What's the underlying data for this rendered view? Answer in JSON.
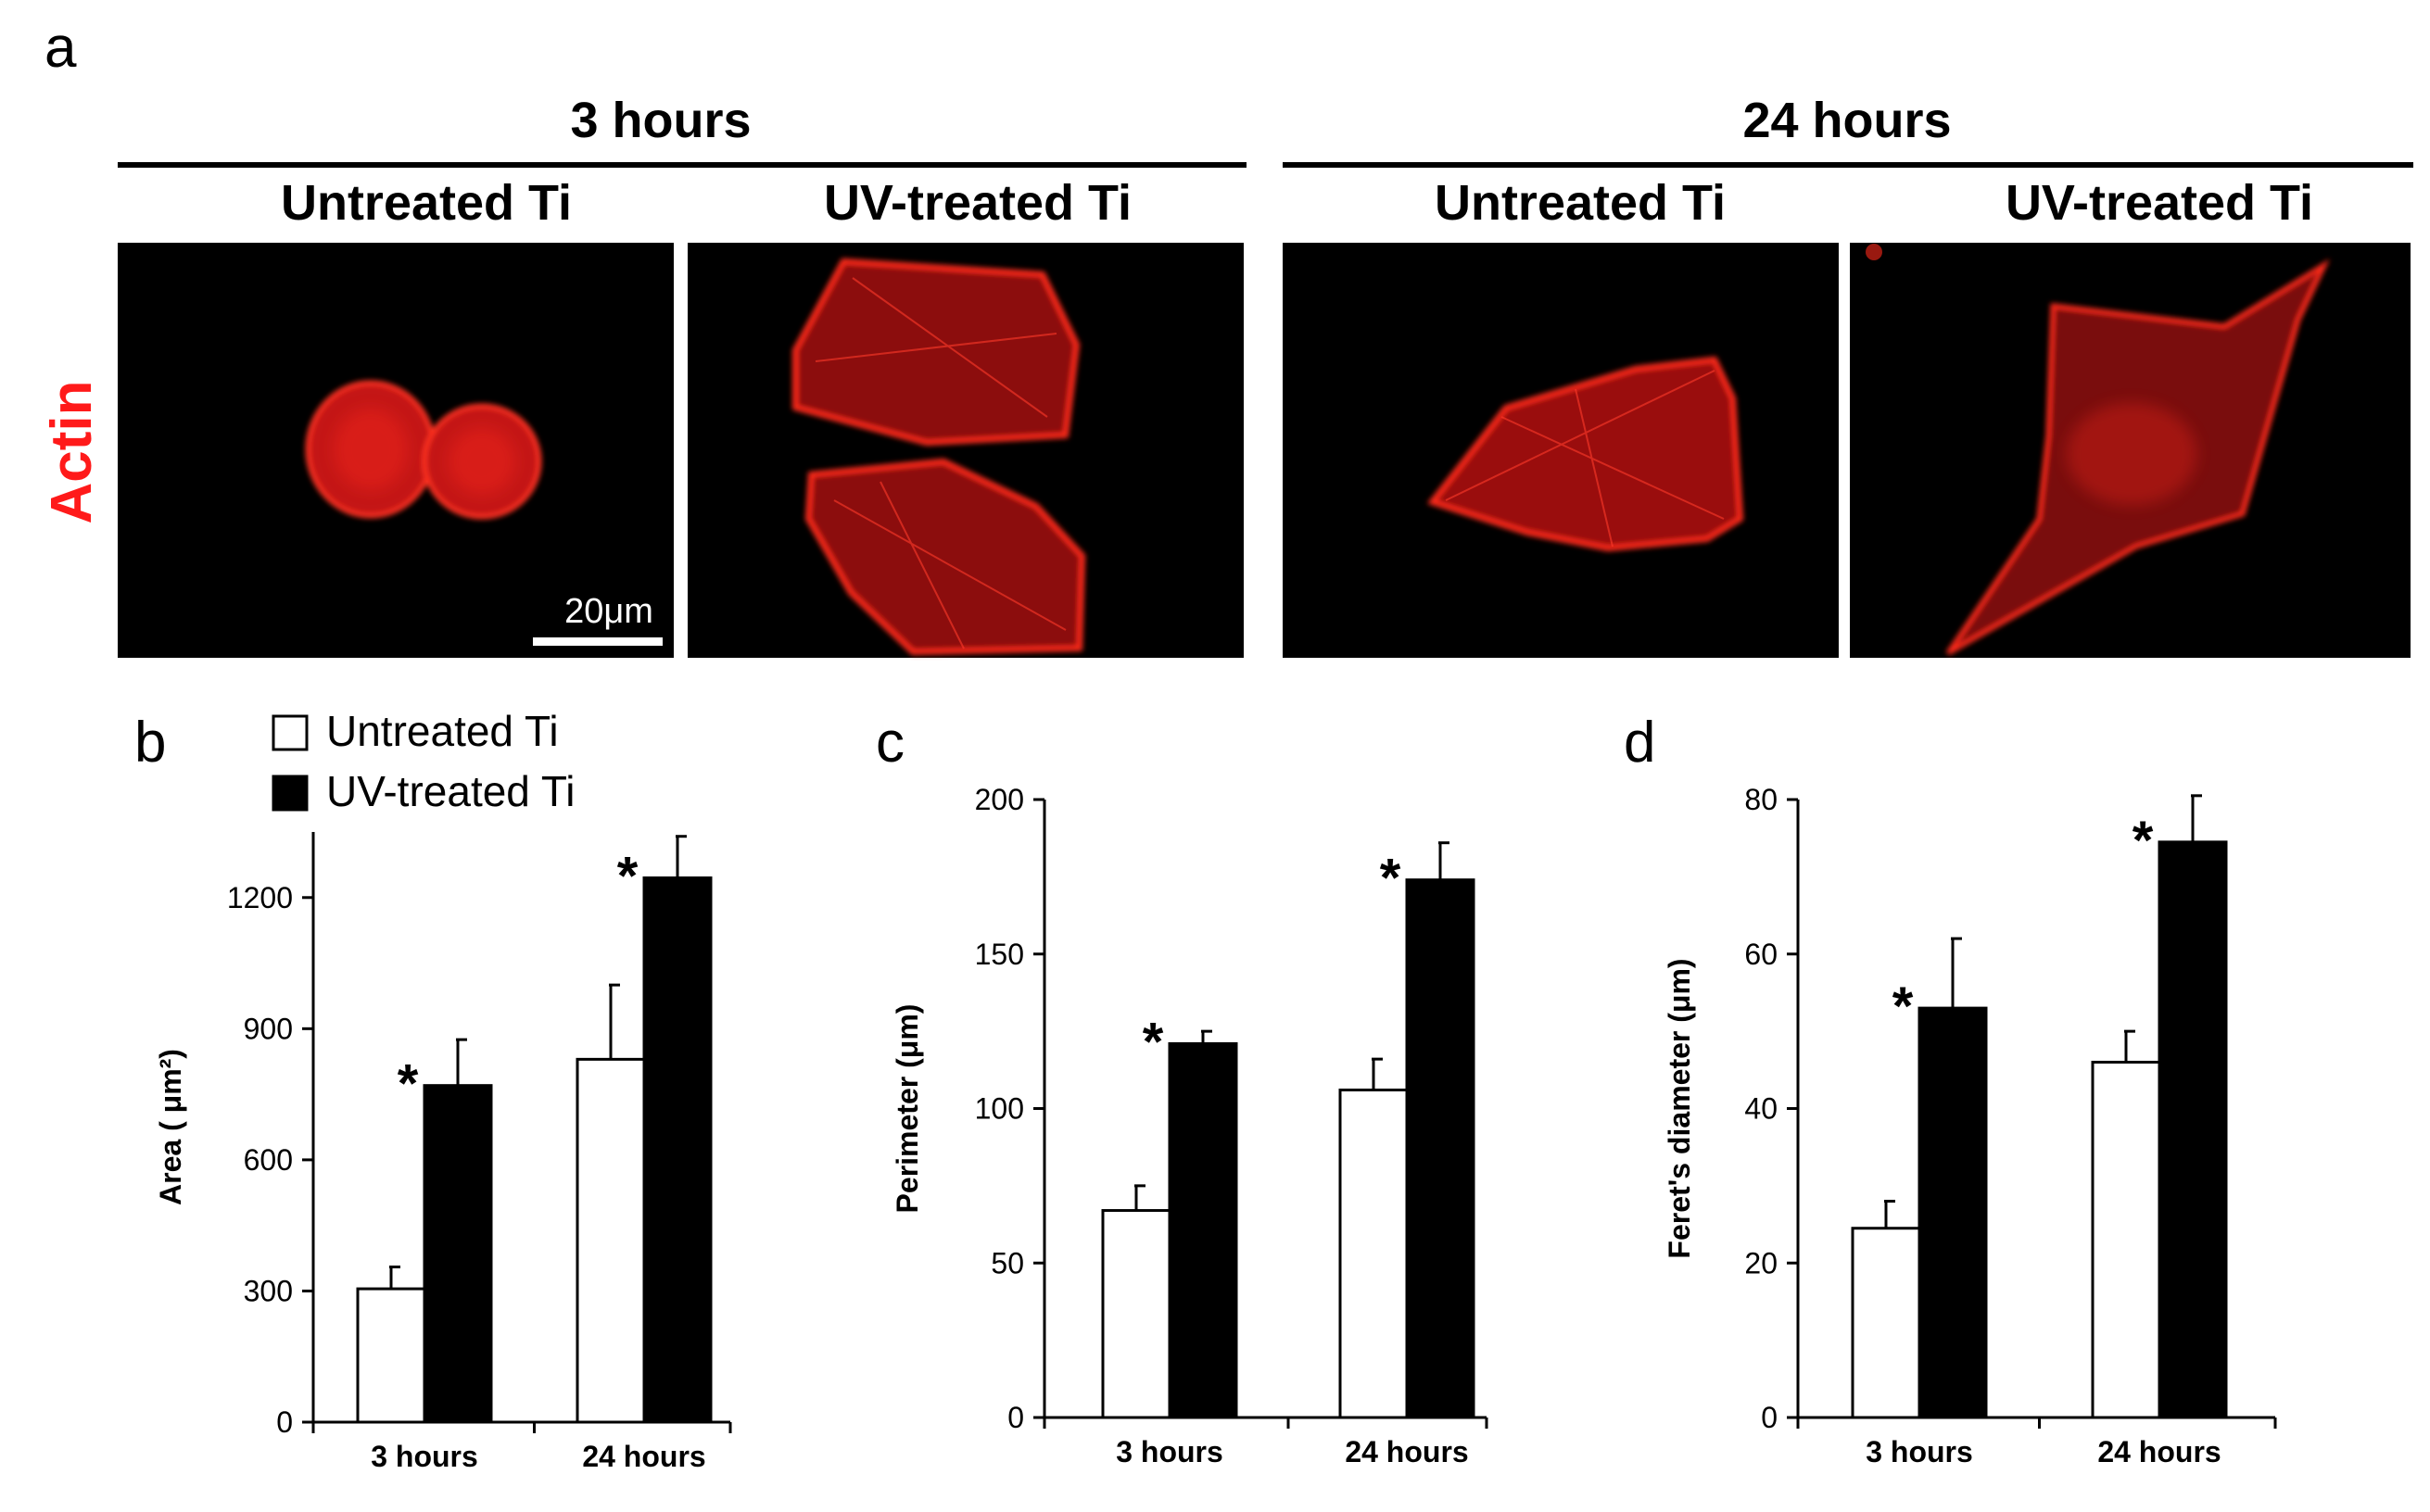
{
  "figure": {
    "panel_a_letter": "a",
    "groups": [
      "3 hours",
      "24 hours"
    ],
    "columns": [
      "Untreated Ti",
      "UV-treated Ti",
      "Untreated Ti",
      "UV-treated Ti"
    ],
    "row_label": "Actin",
    "row_label_color": "#ff1a1a",
    "scale_bar_label": "20μm",
    "micrograph_stain_color": "#ff2a1a",
    "legend": [
      {
        "label": "Untreated Ti",
        "fill": "#ffffff"
      },
      {
        "label": "UV-treated Ti",
        "fill": "#000000"
      }
    ]
  },
  "chart_data": [
    {
      "panel": "b",
      "type": "bar",
      "categories": [
        "3 hours",
        "24 hours"
      ],
      "ylabel": "Area ( μm²)",
      "ylim": [
        0,
        1350
      ],
      "yticks": [
        0,
        300,
        600,
        900,
        1200
      ],
      "series": [
        {
          "name": "Untreated Ti",
          "values": [
            305,
            830
          ],
          "errors": [
            50,
            170
          ],
          "color": "#ffffff"
        },
        {
          "name": "UV-treated Ti",
          "values": [
            770,
            1245
          ],
          "errors": [
            105,
            95
          ],
          "color": "#000000"
        }
      ],
      "significance": [
        "*",
        "*"
      ]
    },
    {
      "panel": "c",
      "type": "bar",
      "categories": [
        "3 hours",
        "24 hours"
      ],
      "ylabel": "Perimeter (μm)",
      "ylim": [
        0,
        200
      ],
      "yticks": [
        0,
        50,
        100,
        150,
        200
      ],
      "series": [
        {
          "name": "Untreated Ti",
          "values": [
            67,
            106
          ],
          "errors": [
            8,
            10
          ],
          "color": "#ffffff"
        },
        {
          "name": "UV-treated Ti",
          "values": [
            121,
            174
          ],
          "errors": [
            4,
            12
          ],
          "color": "#000000"
        }
      ],
      "significance": [
        "*",
        "*"
      ]
    },
    {
      "panel": "d",
      "type": "bar",
      "categories": [
        "3 hours",
        "24 hours"
      ],
      "ylabel": "Feret's diameter (μm)",
      "ylim": [
        0,
        80
      ],
      "yticks": [
        0,
        20,
        40,
        60,
        80
      ],
      "series": [
        {
          "name": "Untreated Ti",
          "values": [
            24.5,
            46
          ],
          "errors": [
            3.5,
            4
          ],
          "color": "#ffffff"
        },
        {
          "name": "UV-treated Ti",
          "values": [
            53,
            74.5
          ],
          "errors": [
            9,
            6
          ],
          "color": "#000000"
        }
      ],
      "significance": [
        "*",
        "*"
      ]
    }
  ]
}
